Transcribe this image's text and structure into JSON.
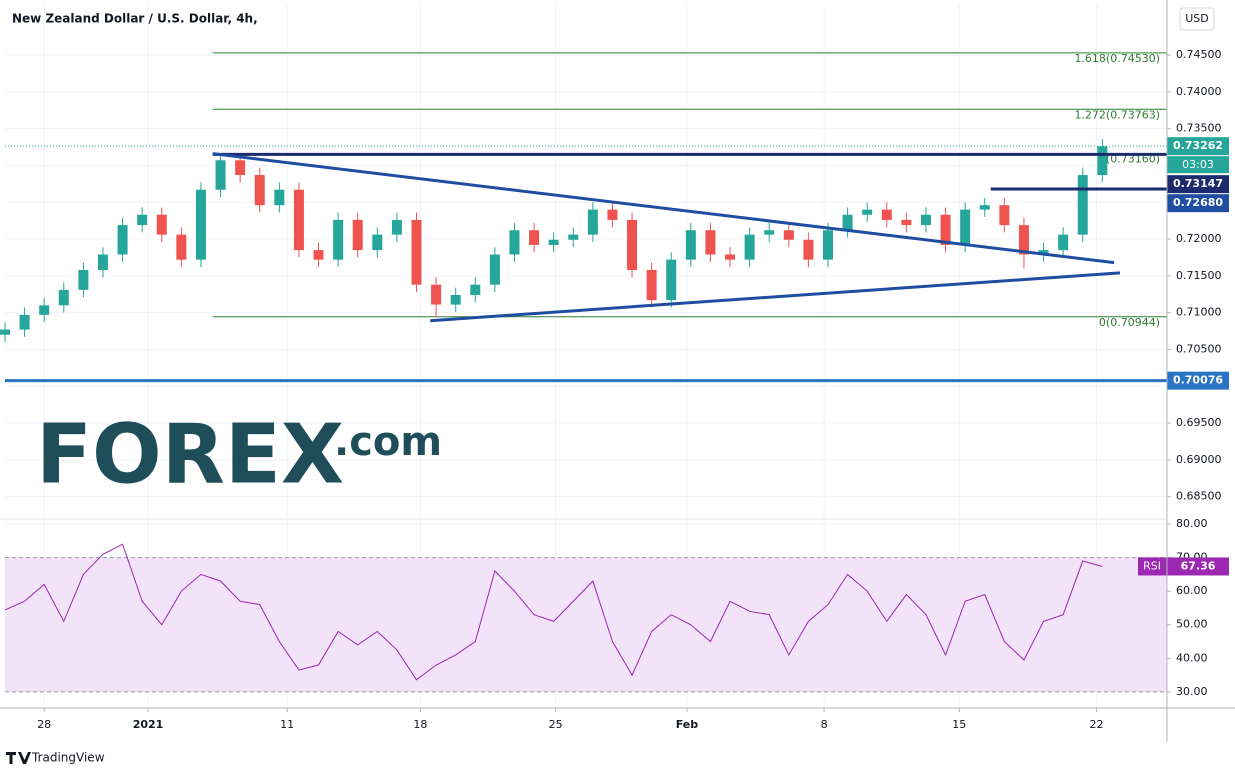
{
  "header": {
    "title": "New Zealand Dollar / U.S. Dollar, 4h,",
    "currency": "USD"
  },
  "logo": {
    "main": "FOREX",
    "suffix": ".com"
  },
  "footer": "TradingView",
  "chart_data": [
    {
      "type": "candlestick",
      "x": [
        -2,
        -1,
        0,
        1,
        2,
        3,
        4,
        5,
        6,
        7,
        8,
        9,
        10,
        11,
        12,
        13,
        14,
        15,
        16,
        17,
        18,
        19,
        20,
        21,
        22,
        23,
        24,
        25,
        26,
        27,
        28,
        29,
        30,
        31,
        32,
        33,
        34,
        35,
        36,
        37,
        38,
        39,
        40,
        41,
        42,
        43,
        44,
        45,
        46,
        47,
        48,
        49,
        50,
        51,
        52,
        53,
        54
      ],
      "open": [
        0.707,
        0.7077,
        0.7097,
        0.711,
        0.7131,
        0.7158,
        0.7179,
        0.7219,
        0.7233,
        0.7206,
        0.7172,
        0.7267,
        0.7307,
        0.7287,
        0.7246,
        0.7267,
        0.7185,
        0.7172,
        0.7226,
        0.7185,
        0.7206,
        0.7226,
        0.7138,
        0.7111,
        0.7124,
        0.7138,
        0.7179,
        0.7212,
        0.7192,
        0.7199,
        0.7206,
        0.724,
        0.7226,
        0.7158,
        0.7117,
        0.7172,
        0.7212,
        0.7179,
        0.7172,
        0.7206,
        0.7212,
        0.7199,
        0.7172,
        0.7212,
        0.7233,
        0.724,
        0.7226,
        0.7219,
        0.7233,
        0.7192,
        0.724,
        0.7246,
        0.7219,
        0.7179,
        0.7185,
        0.7206,
        0.7287
      ],
      "high": [
        0.7087,
        0.7107,
        0.712,
        0.7141,
        0.7168,
        0.7189,
        0.7229,
        0.7243,
        0.7243,
        0.7216,
        0.7277,
        0.7316,
        0.7317,
        0.7297,
        0.7277,
        0.7277,
        0.7195,
        0.7236,
        0.7236,
        0.7216,
        0.7236,
        0.7236,
        0.7148,
        0.7134,
        0.7148,
        0.7189,
        0.7222,
        0.7222,
        0.7209,
        0.7216,
        0.725,
        0.725,
        0.7236,
        0.7168,
        0.7182,
        0.7222,
        0.7222,
        0.7189,
        0.7216,
        0.7222,
        0.7222,
        0.7209,
        0.7222,
        0.7243,
        0.725,
        0.725,
        0.7236,
        0.7243,
        0.7243,
        0.725,
        0.7256,
        0.7256,
        0.7229,
        0.7195,
        0.7216,
        0.7297,
        0.7336
      ],
      "low": [
        0.706,
        0.7067,
        0.7087,
        0.71,
        0.7121,
        0.7148,
        0.7169,
        0.7209,
        0.7196,
        0.7162,
        0.7162,
        0.7257,
        0.7277,
        0.7236,
        0.7236,
        0.7175,
        0.7162,
        0.7162,
        0.7175,
        0.7175,
        0.7196,
        0.7128,
        0.7094,
        0.7101,
        0.7114,
        0.7128,
        0.7169,
        0.7182,
        0.7182,
        0.7189,
        0.7196,
        0.7216,
        0.7148,
        0.7107,
        0.7107,
        0.7162,
        0.7169,
        0.7162,
        0.7162,
        0.7196,
        0.7189,
        0.7162,
        0.7162,
        0.7202,
        0.7223,
        0.7216,
        0.7209,
        0.7209,
        0.7182,
        0.7182,
        0.723,
        0.7209,
        0.716,
        0.7169,
        0.7175,
        0.7196,
        0.7277
      ],
      "close": [
        0.7077,
        0.7097,
        0.711,
        0.7131,
        0.7158,
        0.7179,
        0.7219,
        0.7233,
        0.7206,
        0.7172,
        0.7267,
        0.7307,
        0.7287,
        0.7246,
        0.7267,
        0.7185,
        0.7172,
        0.7226,
        0.7185,
        0.7206,
        0.7226,
        0.7138,
        0.7111,
        0.7124,
        0.7138,
        0.7179,
        0.7212,
        0.7192,
        0.7199,
        0.7206,
        0.724,
        0.7226,
        0.7158,
        0.7117,
        0.7172,
        0.7212,
        0.7179,
        0.7172,
        0.7206,
        0.7212,
        0.7199,
        0.7172,
        0.7212,
        0.7233,
        0.724,
        0.7226,
        0.7219,
        0.7233,
        0.7192,
        0.724,
        0.7246,
        0.7219,
        0.7179,
        0.7185,
        0.7206,
        0.7287,
        0.7326
      ],
      "up_color": "#26a69a",
      "down_color": "#ef5350",
      "xlim": [
        -2,
        57.3
      ],
      "xticks": [
        {
          "value": 0,
          "label": "28"
        },
        {
          "value": 5.3,
          "label": "2021"
        },
        {
          "value": 12.4,
          "label": "11"
        },
        {
          "value": 19.2,
          "label": "18"
        },
        {
          "value": 26.1,
          "label": "25"
        },
        {
          "value": 32.8,
          "label": "Feb"
        },
        {
          "value": 39.8,
          "label": "8"
        },
        {
          "value": 46.7,
          "label": "15"
        },
        {
          "value": 53.7,
          "label": "22"
        }
      ],
      "ylim": [
        0.6821,
        0.7518
      ],
      "yticks": [
        {
          "value": 0.685,
          "label": "0.68500"
        },
        {
          "value": 0.69,
          "label": "0.69000"
        },
        {
          "value": 0.695,
          "label": "0.69500"
        },
        {
          "value": 0.7,
          "label": "0.70000"
        },
        {
          "value": 0.705,
          "label": "0.70500"
        },
        {
          "value": 0.71,
          "label": "0.71000"
        },
        {
          "value": 0.715,
          "label": "0.71500"
        },
        {
          "value": 0.72,
          "label": "0.72000"
        },
        {
          "value": 0.725,
          "label": "0.72500"
        },
        {
          "value": 0.73,
          "label": "0.73000"
        },
        {
          "value": 0.735,
          "label": "0.73500"
        },
        {
          "value": 0.74,
          "label": "0.74000"
        },
        {
          "value": 0.745,
          "label": "0.74500"
        }
      ],
      "grid": true,
      "levels": [
        {
          "value": 0.7453,
          "label": "1.618(0.74530)"
        },
        {
          "value": 0.73763,
          "label": "1.272(0.73763)"
        },
        {
          "value": 0.7316,
          "label": "1(0.73160)"
        },
        {
          "value": 0.70944,
          "label": "0(0.70944)"
        }
      ],
      "level_start": 8.6,
      "level_color": "#2e7d32",
      "trend_lines": [
        {
          "color": "#1c2a6e",
          "points": [
            [
              8.6,
              0.7315
            ],
            [
              57.3,
              0.7315
            ]
          ]
        },
        {
          "color": "#1c2a6e",
          "points": [
            [
              48.3,
              0.7268
            ],
            [
              57.3,
              0.7268
            ]
          ]
        },
        {
          "color": "#2a74c4",
          "points": [
            [
              -2,
              0.70076
            ],
            [
              57.3,
              0.70076
            ]
          ]
        },
        {
          "color": "#1f4ea0",
          "points": [
            [
              8.6,
              0.7316
            ],
            [
              54.6,
              0.7168
            ]
          ]
        },
        {
          "color": "#1f4ea0",
          "points": [
            [
              19.7,
              0.7089
            ],
            [
              54.9,
              0.7154
            ]
          ]
        }
      ],
      "price_labels": [
        {
          "value": 0.73262,
          "label": "0.73262",
          "color": "#26a69a"
        },
        {
          "value": 0.73147,
          "label": "0.73147",
          "color": "#1c2a6e"
        },
        {
          "value": 0.7268,
          "label": "0.72680",
          "color": "#1f4ea0"
        },
        {
          "value": 0.70076,
          "label": "0.70076",
          "color": "#2a74c4"
        }
      ],
      "countdown": "03:03"
    },
    {
      "type": "line",
      "name": "RSI",
      "color": "#9c27b0",
      "x": [
        -2,
        -1,
        0,
        1,
        2,
        3,
        4,
        5,
        6,
        7,
        8,
        9,
        10,
        11,
        12,
        13,
        14,
        15,
        16,
        17,
        18,
        19,
        20,
        21,
        22,
        23,
        24,
        25,
        26,
        27,
        28,
        29,
        30,
        31,
        32,
        33,
        34,
        35,
        36,
        37,
        38,
        39,
        40,
        41,
        42,
        43,
        44,
        45,
        46,
        47,
        48,
        49,
        50,
        51,
        52,
        53,
        54
      ],
      "values": [
        54.4,
        57,
        62,
        51,
        65,
        71,
        74,
        57,
        50,
        60,
        65,
        63,
        57,
        56,
        45,
        36.5,
        38,
        48,
        44,
        48,
        42.5,
        33.6,
        38,
        41,
        45,
        66,
        60,
        53,
        51,
        57,
        63,
        45,
        35,
        48,
        53,
        50,
        45,
        57,
        54,
        53,
        41,
        51,
        56,
        65,
        60,
        51,
        59,
        53,
        41,
        57,
        59,
        45,
        39.5,
        51,
        53,
        69,
        67.36
      ],
      "xlim": [
        -2,
        57.3
      ],
      "ylim": [
        25.2,
        81.2
      ],
      "yticks": [
        {
          "value": 30,
          "label": "30.00"
        },
        {
          "value": 40,
          "label": "40.00"
        },
        {
          "value": 50,
          "label": "50.00"
        },
        {
          "value": 60,
          "label": "60.00"
        },
        {
          "value": 70,
          "label": "70.00"
        },
        {
          "value": 80,
          "label": "80.00"
        }
      ],
      "band": [
        30,
        70
      ],
      "band_color": "#f3e3f8"
    }
  ]
}
